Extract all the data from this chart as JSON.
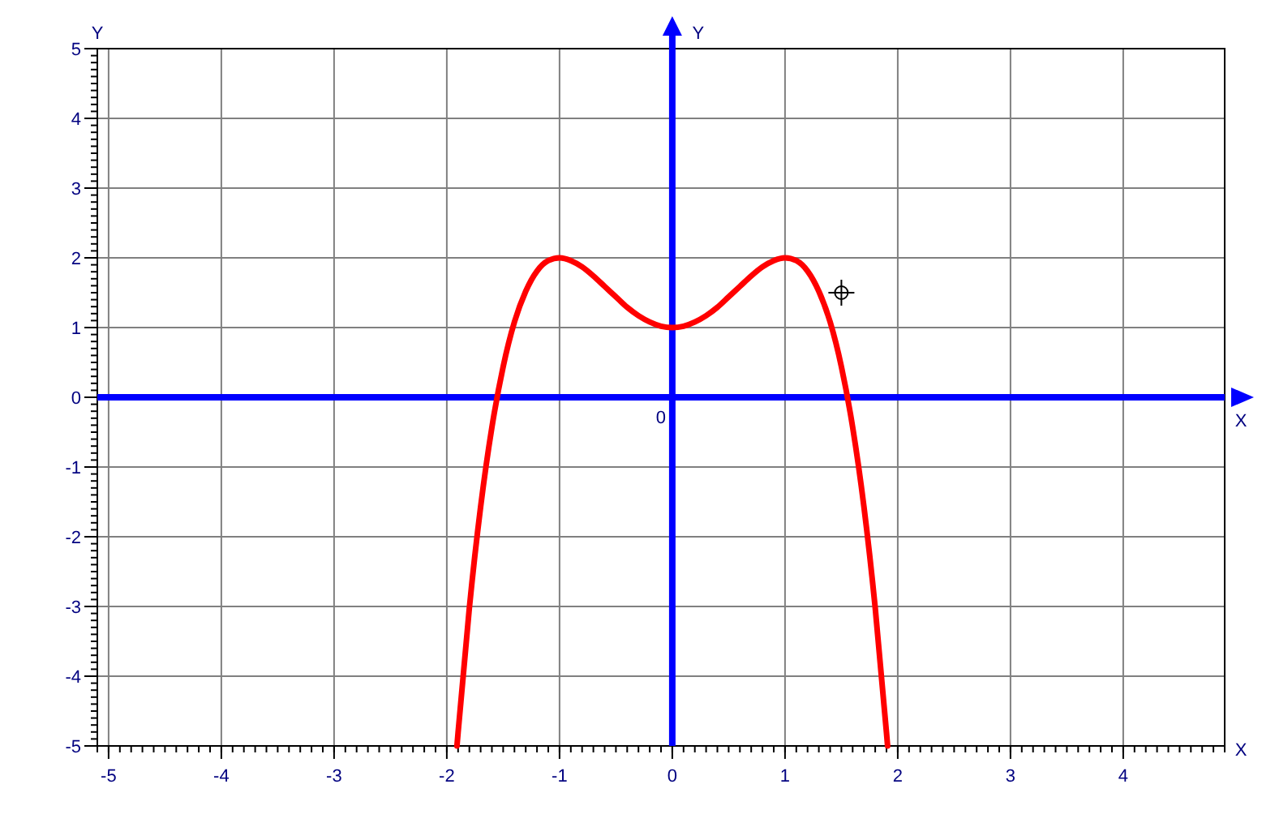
{
  "chart_data": {
    "type": "line",
    "xlabel": "X",
    "ylabel": "Y",
    "xlim": [
      -5.1,
      4.9
    ],
    "ylim": [
      -5,
      5
    ],
    "xticks": [
      -5,
      -4,
      -3,
      -2,
      -1,
      0,
      1,
      2,
      3,
      4
    ],
    "yticks": [
      -5,
      -4,
      -3,
      -2,
      -1,
      0,
      1,
      2,
      3,
      4,
      5
    ],
    "grid": true,
    "line_style": "solid",
    "marker": "none",
    "annotations": [
      "0"
    ],
    "series": [
      {
        "color": "#ff0000",
        "x": [
          -1.91,
          -1.9,
          -1.8,
          -1.7,
          -1.6,
          -1.5,
          -1.4,
          -1.3,
          -1.2,
          -1.1,
          -1,
          -0.9,
          -0.8,
          -0.7,
          -0.6,
          -0.5,
          -0.4,
          -0.3,
          -0.2,
          -0.1,
          0,
          0.1,
          0.2,
          0.3,
          0.4,
          0.5,
          0.6,
          0.7,
          0.8,
          0.9,
          1,
          1.1,
          1.2,
          1.3,
          1.4,
          1.5,
          1.6,
          1.7,
          1.8,
          1.9,
          1.91
        ],
        "values": [
          -5,
          -4.81,
          -3.02,
          -1.57,
          -0.43,
          0.44,
          1.08,
          1.52,
          1.81,
          1.96,
          2,
          1.96,
          1.87,
          1.74,
          1.59,
          1.44,
          1.29,
          1.17,
          1.08,
          1.02,
          1,
          1.02,
          1.08,
          1.17,
          1.29,
          1.44,
          1.59,
          1.74,
          1.87,
          1.96,
          2,
          1.96,
          1.81,
          1.52,
          1.08,
          0.44,
          -0.43,
          -1.57,
          -3.02,
          -4.81,
          -5
        ]
      }
    ]
  }
}
